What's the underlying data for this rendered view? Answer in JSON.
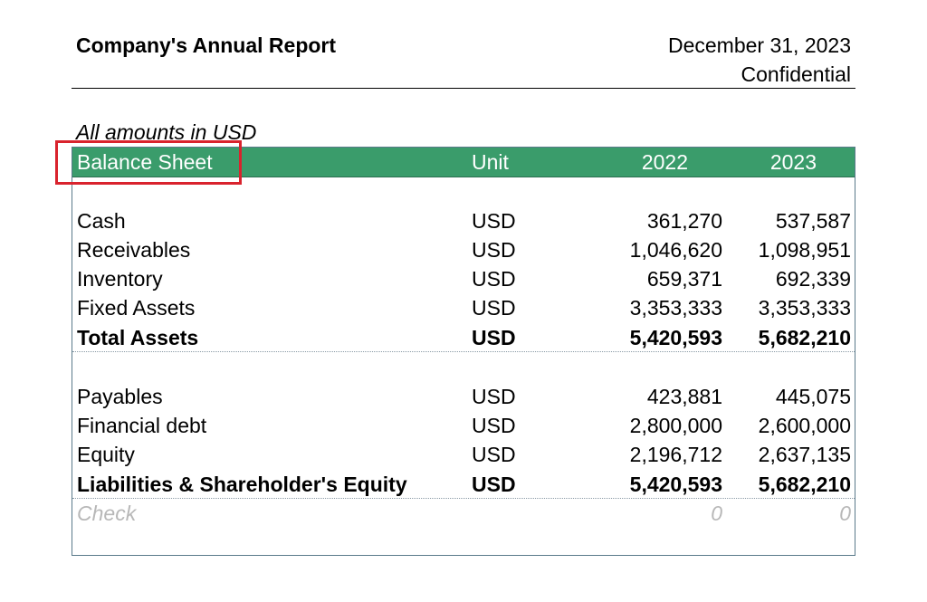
{
  "header": {
    "title": "Company's Annual Report",
    "date": "December 31, 2023",
    "classification": "Confidential"
  },
  "note": "All amounts in USD",
  "table": {
    "columns": {
      "label": "Balance Sheet",
      "unit": "Unit",
      "year1": "2022",
      "year2": "2023"
    },
    "assets": [
      {
        "label": "Cash",
        "unit": "USD",
        "y2022": "361,270",
        "y2023": "537,587"
      },
      {
        "label": "Receivables",
        "unit": "USD",
        "y2022": "1,046,620",
        "y2023": "1,098,951"
      },
      {
        "label": "Inventory",
        "unit": "USD",
        "y2022": "659,371",
        "y2023": "692,339"
      },
      {
        "label": "Fixed Assets",
        "unit": "USD",
        "y2022": "3,353,333",
        "y2023": "3,353,333"
      }
    ],
    "total_assets": {
      "label": "Total Assets",
      "unit": "USD",
      "y2022": "5,420,593",
      "y2023": "5,682,210"
    },
    "liabilities": [
      {
        "label": "Payables",
        "unit": "USD",
        "y2022": "423,881",
        "y2023": "445,075"
      },
      {
        "label": "Financial debt",
        "unit": "USD",
        "y2022": "2,800,000",
        "y2023": "2,600,000"
      },
      {
        "label": "Equity",
        "unit": "USD",
        "y2022": "2,196,712",
        "y2023": "2,637,135"
      }
    ],
    "total_liabilities": {
      "label": "Liabilities & Shareholder's Equity",
      "unit": "USD",
      "y2022": "5,420,593",
      "y2023": "5,682,210"
    },
    "check": {
      "label": "Check",
      "y2022": "0",
      "y2023": "0"
    }
  },
  "colors": {
    "header_band": "#3a9c6b",
    "highlight_box": "#d9232d",
    "check_text": "#b8b8b8"
  }
}
